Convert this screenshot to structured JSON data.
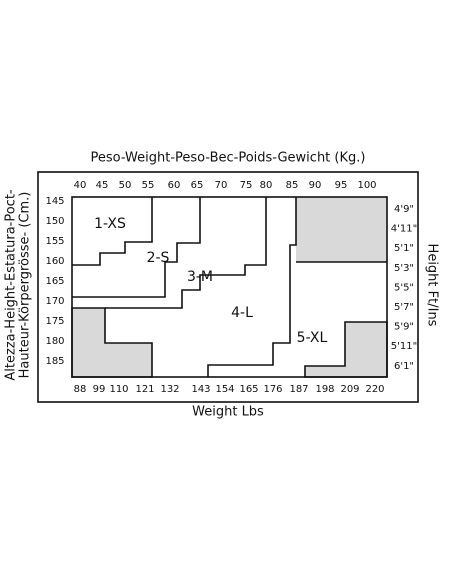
{
  "title": "Peso-Weight-Peso-Bec-Poids-Gewicht (Kg.)",
  "kg_labels": [
    "40",
    "45",
    "50",
    "55",
    "60",
    "65",
    "70",
    "75",
    "80",
    "85",
    "90",
    "95",
    "100"
  ],
  "cm_labels": [
    "145",
    "150",
    "155",
    "160",
    "165",
    "170",
    "175",
    "180",
    "185"
  ],
  "ft_labels": [
    "4'9\"",
    "4'11\"",
    "5'1\"",
    "5'3\"",
    "5'5\"",
    "5'7\"",
    "5'9\"",
    "5'11\"",
    "6'1\""
  ],
  "lbs_labels": [
    "88",
    "99",
    "110",
    "121",
    "132",
    "143",
    "154",
    "165",
    "176",
    "187",
    "198",
    "209",
    "220"
  ],
  "x_axis_title": "Weight Lbs",
  "left_axis_title": [
    "Altezza-Height-Estatura-Poct-",
    "Hauteur-Körpergrösse- (Cm.)"
  ],
  "right_axis_title": "Height Ft/Ins",
  "sizes": [
    "1-XS",
    "2-S",
    "3-M",
    "4-L",
    "5-XL"
  ]
}
